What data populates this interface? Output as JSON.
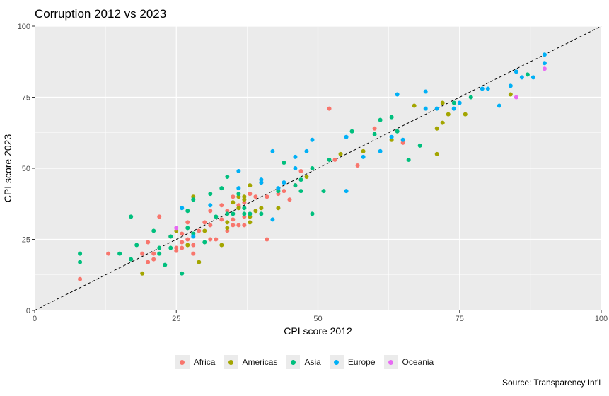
{
  "title": "Corruption 2012 vs 2023",
  "caption": "Source: Transparency Int'l",
  "chart_data": {
    "type": "scatter",
    "title": "Corruption 2012 vs 2023",
    "xlabel": "CPI score 2012",
    "ylabel": "CPI score 2023",
    "xlim": [
      0,
      100
    ],
    "ylim": [
      0,
      100
    ],
    "xticks": [
      0,
      25,
      50,
      75,
      100
    ],
    "yticks": [
      0,
      25,
      50,
      75,
      100
    ],
    "grid": true,
    "reference_line": "y = x (dashed)",
    "legend_position": "bottom",
    "series": [
      {
        "name": "Africa",
        "color": "#F8766D",
        "points": [
          [
            8,
            11
          ],
          [
            13,
            20
          ],
          [
            19,
            20
          ],
          [
            20,
            17
          ],
          [
            20,
            24
          ],
          [
            21,
            18
          ],
          [
            21,
            20
          ],
          [
            22,
            33
          ],
          [
            24,
            26
          ],
          [
            25,
            21
          ],
          [
            25,
            22
          ],
          [
            26,
            22
          ],
          [
            26,
            24
          ],
          [
            26,
            27
          ],
          [
            27,
            25
          ],
          [
            27,
            31
          ],
          [
            28,
            20
          ],
          [
            28,
            23
          ],
          [
            29,
            28
          ],
          [
            30,
            31
          ],
          [
            31,
            25
          ],
          [
            31,
            30
          ],
          [
            31,
            35
          ],
          [
            32,
            25
          ],
          [
            33,
            32
          ],
          [
            33,
            37
          ],
          [
            34,
            28
          ],
          [
            34,
            35
          ],
          [
            35,
            30
          ],
          [
            35,
            32
          ],
          [
            35,
            40
          ],
          [
            36,
            30
          ],
          [
            36,
            37
          ],
          [
            37,
            30
          ],
          [
            37,
            33
          ],
          [
            37,
            38
          ],
          [
            38,
            41
          ],
          [
            39,
            40
          ],
          [
            40,
            45
          ],
          [
            41,
            25
          ],
          [
            41,
            40
          ],
          [
            43,
            41
          ],
          [
            44,
            42
          ],
          [
            45,
            39
          ],
          [
            46,
            44
          ],
          [
            47,
            49
          ],
          [
            52,
            71
          ],
          [
            53,
            53
          ],
          [
            57,
            51
          ],
          [
            60,
            64
          ],
          [
            65,
            59
          ]
        ]
      },
      {
        "name": "Americas",
        "color": "#A3A500",
        "points": [
          [
            19,
            13
          ],
          [
            25,
            28
          ],
          [
            27,
            23
          ],
          [
            28,
            40
          ],
          [
            29,
            17
          ],
          [
            30,
            28
          ],
          [
            33,
            23
          ],
          [
            34,
            29
          ],
          [
            34,
            31
          ],
          [
            35,
            38
          ],
          [
            36,
            36
          ],
          [
            36,
            40
          ],
          [
            37,
            39
          ],
          [
            37,
            40
          ],
          [
            38,
            31
          ],
          [
            38,
            33
          ],
          [
            38,
            44
          ],
          [
            39,
            35
          ],
          [
            40,
            36
          ],
          [
            43,
            36
          ],
          [
            48,
            47
          ],
          [
            54,
            55
          ],
          [
            58,
            56
          ],
          [
            63,
            60
          ],
          [
            67,
            72
          ],
          [
            71,
            55
          ],
          [
            71,
            64
          ],
          [
            72,
            66
          ],
          [
            72,
            73
          ],
          [
            73,
            69
          ],
          [
            76,
            69
          ],
          [
            84,
            76
          ]
        ]
      },
      {
        "name": "Asia",
        "color": "#00BF7D",
        "points": [
          [
            8,
            17
          ],
          [
            8,
            20
          ],
          [
            15,
            20
          ],
          [
            17,
            18
          ],
          [
            17,
            33
          ],
          [
            18,
            23
          ],
          [
            21,
            28
          ],
          [
            22,
            20
          ],
          [
            22,
            22
          ],
          [
            23,
            16
          ],
          [
            24,
            22
          ],
          [
            24,
            26
          ],
          [
            26,
            13
          ],
          [
            27,
            29
          ],
          [
            27,
            35
          ],
          [
            28,
            27
          ],
          [
            28,
            39
          ],
          [
            30,
            24
          ],
          [
            31,
            41
          ],
          [
            32,
            33
          ],
          [
            33,
            43
          ],
          [
            34,
            34
          ],
          [
            34,
            47
          ],
          [
            35,
            34
          ],
          [
            36,
            41
          ],
          [
            37,
            34
          ],
          [
            37,
            36
          ],
          [
            38,
            34
          ],
          [
            40,
            34
          ],
          [
            43,
            42
          ],
          [
            44,
            52
          ],
          [
            46,
            44
          ],
          [
            47,
            42
          ],
          [
            47,
            46
          ],
          [
            49,
            34
          ],
          [
            49,
            50
          ],
          [
            51,
            42
          ],
          [
            52,
            53
          ],
          [
            56,
            63
          ],
          [
            60,
            62
          ],
          [
            61,
            67
          ],
          [
            63,
            68
          ],
          [
            64,
            63
          ],
          [
            66,
            53
          ],
          [
            68,
            58
          ],
          [
            74,
            73
          ],
          [
            77,
            75
          ],
          [
            87,
            83
          ]
        ]
      },
      {
        "name": "Europe",
        "color": "#00B0F6",
        "points": [
          [
            26,
            36
          ],
          [
            28,
            26
          ],
          [
            31,
            37
          ],
          [
            36,
            43
          ],
          [
            36,
            49
          ],
          [
            40,
            45
          ],
          [
            40,
            46
          ],
          [
            42,
            32
          ],
          [
            42,
            56
          ],
          [
            43,
            43
          ],
          [
            44,
            45
          ],
          [
            46,
            50
          ],
          [
            46,
            54
          ],
          [
            48,
            56
          ],
          [
            49,
            60
          ],
          [
            55,
            42
          ],
          [
            55,
            61
          ],
          [
            58,
            54
          ],
          [
            61,
            56
          ],
          [
            63,
            61
          ],
          [
            64,
            76
          ],
          [
            65,
            60
          ],
          [
            69,
            71
          ],
          [
            69,
            77
          ],
          [
            71,
            71
          ],
          [
            74,
            71
          ],
          [
            75,
            73
          ],
          [
            79,
            78
          ],
          [
            80,
            78
          ],
          [
            82,
            72
          ],
          [
            84,
            79
          ],
          [
            85,
            84
          ],
          [
            86,
            82
          ],
          [
            88,
            82
          ],
          [
            90,
            87
          ],
          [
            90,
            90
          ]
        ]
      },
      {
        "name": "Oceania",
        "color": "#E76BF3",
        "points": [
          [
            25,
            29
          ],
          [
            85,
            75
          ],
          [
            90,
            85
          ]
        ]
      }
    ]
  }
}
